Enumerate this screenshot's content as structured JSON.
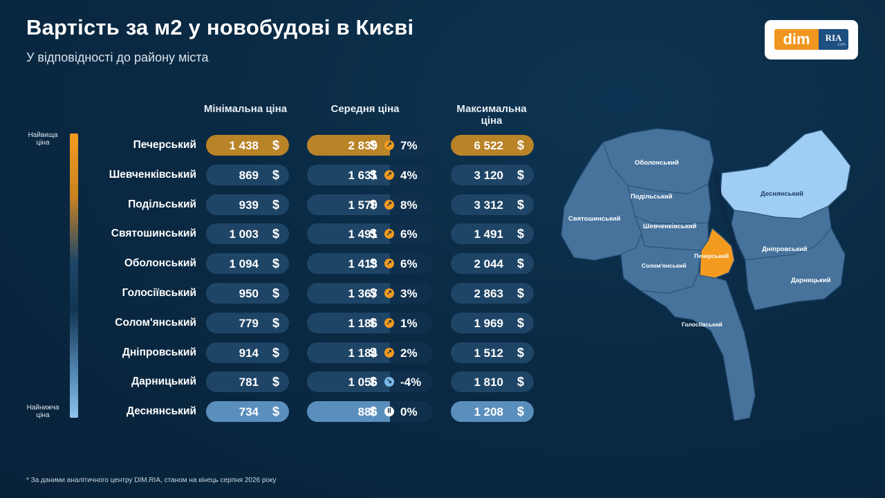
{
  "header": {
    "title": "Вартість за м2 у новобудові в Києві",
    "subtitle": "У відповідності до району міста"
  },
  "logo": {
    "part1": "dim",
    "part2": "RIA",
    "part3": ".com"
  },
  "legend": {
    "top": "Найвища ціна",
    "bottom": "Найнижча ціна"
  },
  "columns": {
    "min": "Мінімальна ціна",
    "avg": "Середня ціна",
    "max": "Максимальна ціна"
  },
  "currency": "$",
  "footnote": "* За даними аналітичного центру DIM.RIA, станом на кінець серпня 2026 року",
  "colors": {
    "accent": "#f39b1f",
    "gold": "#b98327",
    "dark_pill": "#1e4566",
    "light_pill": "#5a8fbd",
    "map_fill": "#46729b",
    "map_light": "#9fcdf3",
    "map_highlight": "#f39b1f"
  },
  "chart_data": {
    "type": "table",
    "categories": [
      "Печерський",
      "Шевченківський",
      "Подільський",
      "Святошинський",
      "Оболонський",
      "Голосіївський",
      "Солом'янський",
      "Дніпровський",
      "Дарницький",
      "Деснянський"
    ],
    "series": [
      {
        "name": "Мінімальна ціна",
        "values": [
          1438,
          869,
          939,
          1003,
          1094,
          950,
          779,
          914,
          781,
          734
        ]
      },
      {
        "name": "Середня ціна",
        "values": [
          2839,
          1631,
          1570,
          1491,
          1413,
          1367,
          1186,
          1184,
          1056,
          886
        ]
      },
      {
        "name": "Максимальна ціна",
        "values": [
          6522,
          3120,
          3312,
          1491,
          2044,
          2863,
          1969,
          1512,
          1810,
          1208
        ]
      }
    ],
    "change_percent": [
      7,
      4,
      8,
      6,
      6,
      3,
      1,
      2,
      -4,
      0
    ],
    "rows": [
      {
        "district": "Печерський",
        "min": "1 438",
        "avg": "2 839",
        "change": "7%",
        "trend": "up",
        "max": "6 522",
        "tier": "top"
      },
      {
        "district": "Шевченківський",
        "min": "869",
        "avg": "1 631",
        "change": "4%",
        "trend": "up",
        "max": "3 120",
        "tier": "mid"
      },
      {
        "district": "Подільський",
        "min": "939",
        "avg": "1 570",
        "change": "8%",
        "trend": "up",
        "max": "3 312",
        "tier": "mid"
      },
      {
        "district": "Святошинський",
        "min": "1 003",
        "avg": "1 491",
        "change": "6%",
        "trend": "up",
        "max": "1 491",
        "tier": "mid"
      },
      {
        "district": "Оболонський",
        "min": "1 094",
        "avg": "1 413",
        "change": "6%",
        "trend": "up",
        "max": "2 044",
        "tier": "mid"
      },
      {
        "district": "Голосіївський",
        "min": "950",
        "avg": "1 367",
        "change": "3%",
        "trend": "up",
        "max": "2 863",
        "tier": "mid"
      },
      {
        "district": "Солом'янський",
        "min": "779",
        "avg": "1 186",
        "change": "1%",
        "trend": "up",
        "max": "1 969",
        "tier": "mid"
      },
      {
        "district": "Дніпровський",
        "min": "914",
        "avg": "1 184",
        "change": "2%",
        "trend": "up",
        "max": "1 512",
        "tier": "mid"
      },
      {
        "district": "Дарницький",
        "min": "781",
        "avg": "1 056",
        "change": "-4%",
        "trend": "down",
        "max": "1 810",
        "tier": "mid"
      },
      {
        "district": "Деснянський",
        "min": "734",
        "avg": "886",
        "change": "0%",
        "trend": "flat",
        "max": "1 208",
        "tier": "low"
      }
    ],
    "map_labels": {
      "obolonskyi": "Оболонський",
      "podilskyi": "Подільський",
      "sviatoshynskyi": "Святошинський",
      "shevchenkivskyi": "Шевченківський",
      "desnianskyi": "Деснянський",
      "dniprovskyi": "Дніпровський",
      "pecherskyi": "Печерський",
      "solomianskyi": "Солом'янський",
      "darnytskyi": "Дарницький",
      "holosiivskyi": "Голосіївський"
    }
  }
}
